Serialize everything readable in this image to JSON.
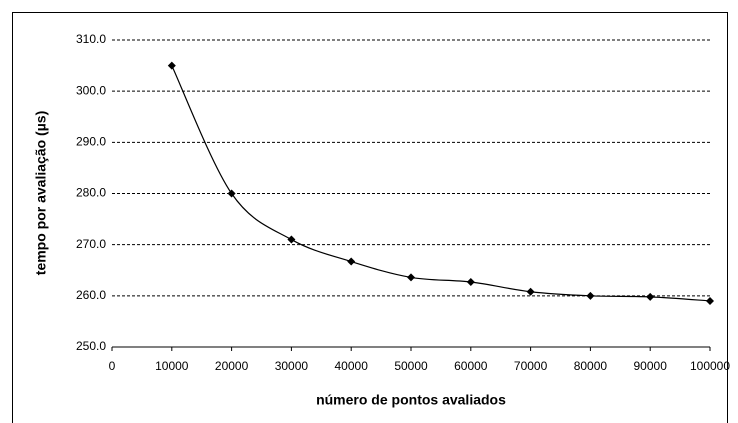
{
  "chart_data": {
    "type": "line",
    "x_label": "número de pontos avaliados",
    "y_label": "tempo por avaliação (µs)",
    "x": [
      10000,
      20000,
      30000,
      40000,
      50000,
      60000,
      70000,
      80000,
      90000,
      100000
    ],
    "series": [
      {
        "color": "#000000",
        "values": [
          305.0,
          280.0,
          271.0,
          266.7,
          263.6,
          262.7,
          260.8,
          260.0,
          259.8,
          259.0
        ]
      }
    ],
    "xlim": [
      0,
      100000
    ],
    "xticks": [
      0,
      10000,
      20000,
      30000,
      40000,
      50000,
      60000,
      70000,
      80000,
      90000,
      100000
    ],
    "ylim": [
      250,
      310
    ],
    "yticks": [
      {
        "value": 250,
        "label": "250.0"
      },
      {
        "value": 260,
        "label": "260.0"
      },
      {
        "value": 270,
        "label": "270.0"
      },
      {
        "value": 280,
        "label": "280.0"
      },
      {
        "value": 290,
        "label": "290.0"
      },
      {
        "value": 300,
        "label": "300.0"
      },
      {
        "value": 310,
        "label": "310.0"
      }
    ],
    "grid": true,
    "smooth": true,
    "markers": true
  }
}
